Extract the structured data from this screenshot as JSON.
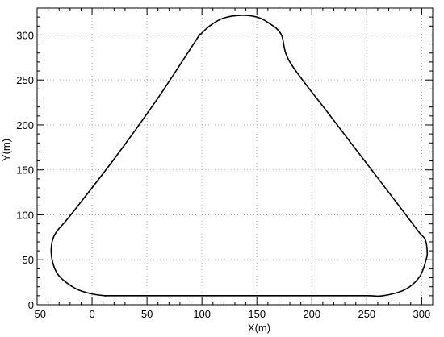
{
  "chart_data": {
    "type": "line",
    "title": "",
    "xlabel": "X(m)",
    "ylabel": "Y(m)",
    "xlim": [
      -50,
      310
    ],
    "ylim": [
      0,
      330
    ],
    "xticks": [
      -50,
      0,
      50,
      100,
      150,
      200,
      250,
      300
    ],
    "yticks": [
      0,
      50,
      100,
      150,
      200,
      250,
      300
    ],
    "xtick_labels": [
      "−50",
      "0",
      "50",
      "100",
      "150",
      "200",
      "250",
      "300"
    ],
    "ytick_labels": [
      "0",
      "50",
      "100",
      "150",
      "200",
      "250",
      "300"
    ],
    "grid": true,
    "color": "#000000",
    "series": [
      {
        "x": [
          12,
          25,
          50,
          100,
          150,
          200,
          250,
          265,
          285,
          298,
          304,
          305,
          303,
          298,
          285,
          250,
          215,
          180,
          172,
          160,
          150,
          136,
          120,
          108,
          98,
          95,
          60,
          20,
          -20,
          -33,
          -37,
          -36,
          -30,
          -15,
          0,
          12
        ],
        "y": [
          10,
          10,
          10,
          10,
          10,
          10,
          10,
          10,
          17,
          31,
          50,
          60,
          73,
          80,
          101,
          157,
          213,
          270,
          301,
          314,
          320,
          322,
          319,
          311,
          300,
          295,
          230,
          162,
          99,
          80,
          65,
          48,
          32,
          18,
          12,
          10
        ]
      }
    ]
  }
}
